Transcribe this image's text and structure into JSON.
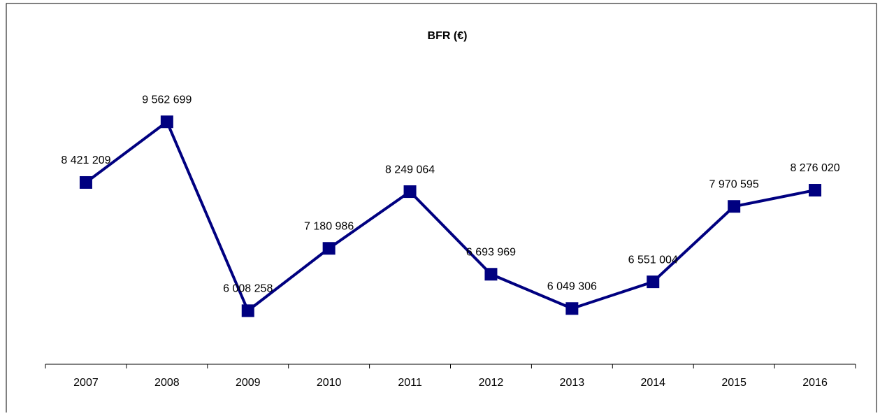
{
  "chart_data": {
    "type": "line",
    "title": "BFR (€)",
    "categories": [
      "2007",
      "2008",
      "2009",
      "2010",
      "2011",
      "2012",
      "2013",
      "2014",
      "2015",
      "2016"
    ],
    "values": [
      8421209,
      9562699,
      6008258,
      7180986,
      8249064,
      6693969,
      6049306,
      6551004,
      7970595,
      8276020
    ],
    "value_labels": [
      "8 421 209",
      "9 562 699",
      "6 008 258",
      "7 180 986",
      "8 249 064",
      "6 693 969",
      "6 049 306",
      "6 551 004",
      "7 970 595",
      "8 276 020"
    ],
    "color": "#000080",
    "ylim": [
      5000000,
      10000000
    ]
  }
}
